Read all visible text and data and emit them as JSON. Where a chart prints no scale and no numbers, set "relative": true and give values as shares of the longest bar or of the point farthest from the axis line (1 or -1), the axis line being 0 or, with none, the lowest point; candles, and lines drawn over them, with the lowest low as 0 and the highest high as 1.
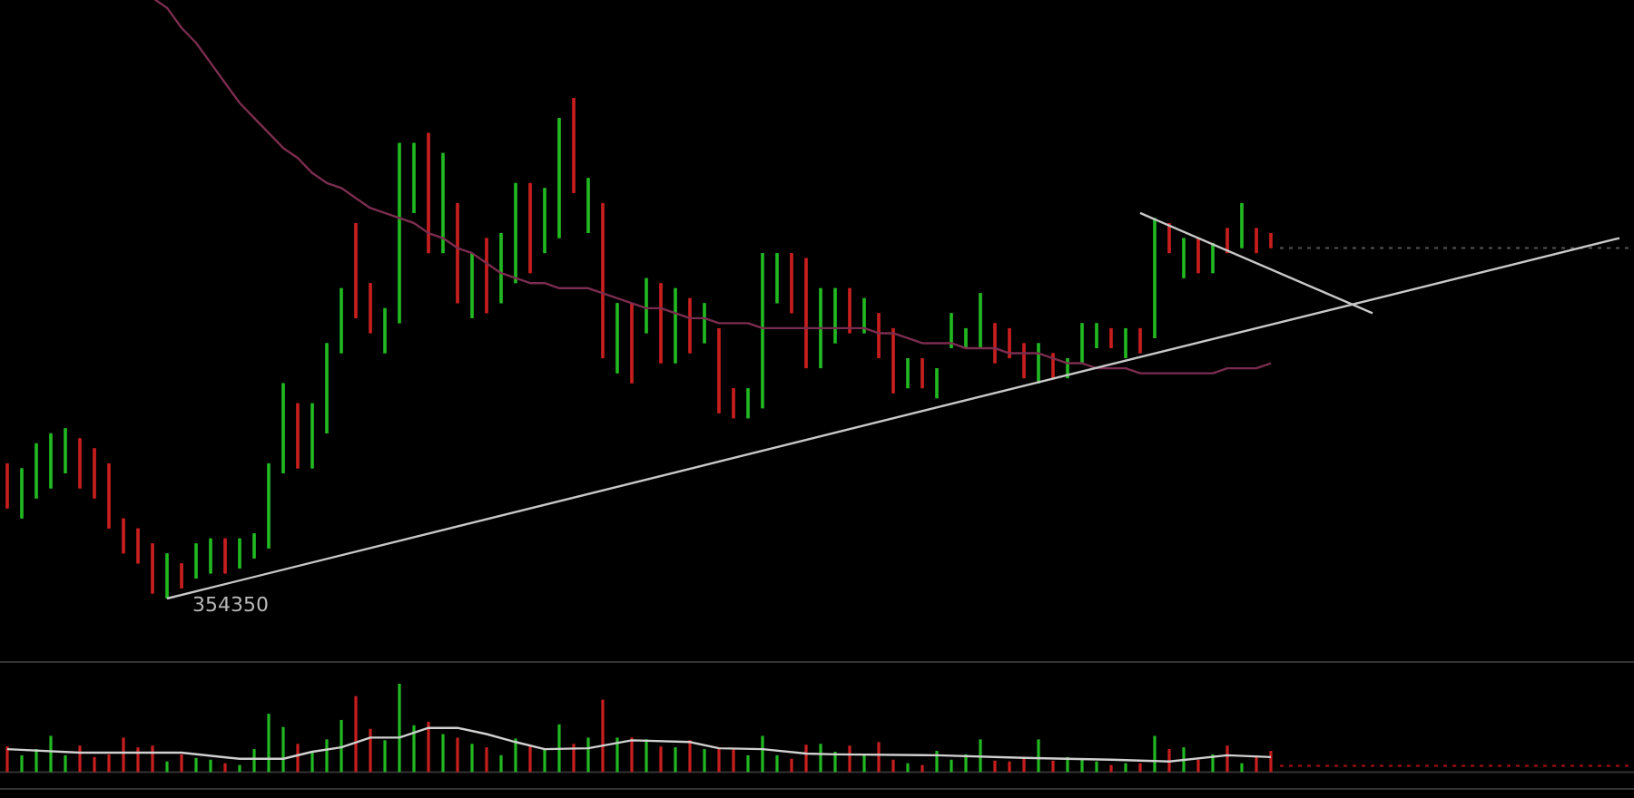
{
  "chart_data": [
    {
      "type": "candlestick",
      "relative": true,
      "categories": [
        null,
        null,
        null,
        null,
        null,
        null,
        null,
        null,
        null,
        null,
        null,
        null,
        null,
        null,
        null,
        null,
        null,
        null,
        null,
        null,
        null,
        null,
        null,
        null,
        null,
        null,
        null,
        null,
        null,
        null,
        null,
        null,
        null,
        null,
        null,
        null,
        null,
        null,
        null,
        null,
        null,
        null,
        null,
        null,
        null,
        null,
        null,
        null,
        null,
        null,
        null,
        null,
        null,
        null,
        null,
        null,
        null,
        null,
        null,
        null,
        null,
        null,
        null,
        null,
        null,
        null,
        null,
        null,
        null,
        null,
        null,
        null,
        null,
        null,
        null,
        null,
        null,
        null,
        null,
        null,
        null,
        null,
        null,
        null,
        null,
        null,
        null,
        null,
        null,
        null,
        null,
        null,
        null,
        null,
        null,
        null,
        null,
        null,
        null,
        null,
        null,
        null,
        null,
        null,
        null,
        null,
        null,
        null,
        null,
        null,
        null,
        null
      ],
      "ohlc": [
        [
          0.27,
          0.27,
          0.18,
          0.18
        ],
        [
          0.16,
          0.26,
          0.16,
          0.26
        ],
        [
          0.2,
          0.31,
          0.2,
          0.31
        ],
        [
          0.22,
          0.33,
          0.22,
          0.33
        ],
        [
          0.25,
          0.34,
          0.25,
          0.34
        ],
        [
          0.32,
          0.32,
          0.22,
          0.22
        ],
        [
          0.3,
          0.3,
          0.2,
          0.2
        ],
        [
          0.27,
          0.27,
          0.14,
          0.14
        ],
        [
          0.16,
          0.16,
          0.09,
          0.09
        ],
        [
          0.14,
          0.14,
          0.07,
          0.07
        ],
        [
          0.11,
          0.11,
          0.01,
          0.01
        ],
        [
          0,
          0.09,
          0,
          0.09
        ],
        [
          0.07,
          0.07,
          0.02,
          0.02
        ],
        [
          0.04,
          0.11,
          0.04,
          0.11
        ],
        [
          0.05,
          0.12,
          0.05,
          0.12
        ],
        [
          0.12,
          0.12,
          0.05,
          0.05
        ],
        [
          0.06,
          0.12,
          0.06,
          0.12
        ],
        [
          0.08,
          0.13,
          0.08,
          0.13
        ],
        [
          0.1,
          0.27,
          0.1,
          0.27
        ],
        [
          0.25,
          0.43,
          0.25,
          0.43
        ],
        [
          0.39,
          0.39,
          0.26,
          0.26
        ],
        [
          0.26,
          0.39,
          0.26,
          0.39
        ],
        [
          0.33,
          0.51,
          0.33,
          0.51
        ],
        [
          0.49,
          0.62,
          0.49,
          0.62
        ],
        [
          0.75,
          0.75,
          0.56,
          0.56
        ],
        [
          0.63,
          0.63,
          0.53,
          0.53
        ],
        [
          0.49,
          0.58,
          0.49,
          0.58
        ],
        [
          0.55,
          0.91,
          0.55,
          0.91
        ],
        [
          0.77,
          0.91,
          0.77,
          0.91
        ],
        [
          0.93,
          0.93,
          0.69,
          0.69
        ],
        [
          0.69,
          0.89,
          0.69,
          0.89
        ],
        [
          0.79,
          0.79,
          0.59,
          0.59
        ],
        [
          0.56,
          0.69,
          0.56,
          0.69
        ],
        [
          0.72,
          0.72,
          0.57,
          0.57
        ],
        [
          0.59,
          0.73,
          0.59,
          0.73
        ],
        [
          0.63,
          0.83,
          0.63,
          0.83
        ],
        [
          0.83,
          0.83,
          0.65,
          0.65
        ],
        [
          0.69,
          0.82,
          0.69,
          0.82
        ],
        [
          0.72,
          0.96,
          0.72,
          0.96
        ],
        [
          1,
          1,
          0.81,
          0.81
        ],
        [
          0.73,
          0.84,
          0.73,
          0.84
        ],
        [
          0.79,
          0.79,
          0.48,
          0.48
        ],
        [
          0.45,
          0.59,
          0.45,
          0.59
        ],
        [
          0.59,
          0.59,
          0.43,
          0.43
        ],
        [
          0.53,
          0.64,
          0.53,
          0.64
        ],
        [
          0.63,
          0.63,
          0.47,
          0.47
        ],
        [
          0.47,
          0.62,
          0.47,
          0.62
        ],
        [
          0.6,
          0.6,
          0.49,
          0.49
        ],
        [
          0.51,
          0.59,
          0.51,
          0.59
        ],
        [
          0.54,
          0.54,
          0.37,
          0.37
        ],
        [
          0.42,
          0.42,
          0.36,
          0.36
        ],
        [
          0.36,
          0.42,
          0.36,
          0.42
        ],
        [
          0.38,
          0.69,
          0.38,
          0.69
        ],
        [
          0.59,
          0.69,
          0.59,
          0.69
        ],
        [
          0.69,
          0.69,
          0.57,
          0.57
        ],
        [
          0.68,
          0.68,
          0.46,
          0.46
        ],
        [
          0.46,
          0.62,
          0.46,
          0.62
        ],
        [
          0.51,
          0.62,
          0.51,
          0.62
        ],
        [
          0.62,
          0.62,
          0.53,
          0.53
        ],
        [
          0.53,
          0.6,
          0.53,
          0.6
        ],
        [
          0.57,
          0.57,
          0.48,
          0.48
        ],
        [
          0.54,
          0.54,
          0.41,
          0.41
        ],
        [
          0.42,
          0.48,
          0.42,
          0.48
        ],
        [
          0.48,
          0.48,
          0.42,
          0.42
        ],
        [
          0.4,
          0.46,
          0.4,
          0.46
        ],
        [
          0.5,
          0.57,
          0.5,
          0.57
        ],
        [
          0.5,
          0.54,
          0.5,
          0.54
        ],
        [
          0.5,
          0.61,
          0.5,
          0.61
        ],
        [
          0.55,
          0.55,
          0.47,
          0.47
        ],
        [
          0.54,
          0.54,
          0.48,
          0.48
        ],
        [
          0.51,
          0.51,
          0.44,
          0.44
        ],
        [
          0.43,
          0.51,
          0.43,
          0.51
        ],
        [
          0.49,
          0.49,
          0.44,
          0.44
        ],
        [
          0.44,
          0.48,
          0.44,
          0.48
        ],
        [
          0.47,
          0.55,
          0.47,
          0.55
        ],
        [
          0.5,
          0.55,
          0.5,
          0.55
        ],
        [
          0.54,
          0.54,
          0.5,
          0.5
        ],
        [
          0.48,
          0.54,
          0.48,
          0.54
        ],
        [
          0.54,
          0.54,
          0.49,
          0.49
        ],
        [
          0.52,
          0.76,
          0.52,
          0.76
        ],
        [
          0.75,
          0.75,
          0.69,
          0.69
        ],
        [
          0.64,
          0.72,
          0.64,
          0.72
        ],
        [
          0.72,
          0.72,
          0.65,
          0.65
        ],
        [
          0.65,
          0.71,
          0.65,
          0.71
        ],
        [
          0.74,
          0.74,
          0.69,
          0.69
        ],
        [
          0.7,
          0.79,
          0.7,
          0.79
        ],
        [
          0.74,
          0.74,
          0.69,
          0.69
        ],
        [
          0.73,
          0.73,
          0.7,
          0.7
        ],
        null,
        null,
        null,
        null,
        null,
        null,
        null,
        null,
        null,
        null,
        null,
        null,
        null,
        null,
        null,
        null,
        null,
        null,
        null,
        null,
        null,
        null,
        null,
        null
      ],
      "colors": [
        "#c81e1e",
        "#22b822",
        "#22b822",
        "#22b822",
        "#22b822",
        "#c81e1e",
        "#c81e1e",
        "#c81e1e",
        "#c81e1e",
        "#c81e1e",
        "#c81e1e",
        "#22b822",
        "#c81e1e",
        "#22b822",
        "#22b822",
        "#c81e1e",
        "#22b822",
        "#22b822",
        "#22b822",
        "#22b822",
        "#c81e1e",
        "#22b822",
        "#22b822",
        "#22b822",
        "#c81e1e",
        "#c81e1e",
        "#22b822",
        "#22b822",
        "#22b822",
        "#c81e1e",
        "#22b822",
        "#c81e1e",
        "#22b822",
        "#c81e1e",
        "#22b822",
        "#22b822",
        "#c81e1e",
        "#22b822",
        "#22b822",
        "#c81e1e",
        "#22b822",
        "#c81e1e",
        "#22b822",
        "#c81e1e",
        "#22b822",
        "#c81e1e",
        "#22b822",
        "#c81e1e",
        "#22b822",
        "#c81e1e",
        "#c81e1e",
        "#22b822",
        "#22b822",
        "#22b822",
        "#c81e1e",
        "#c81e1e",
        "#22b822",
        "#22b822",
        "#c81e1e",
        "#22b822",
        "#c81e1e",
        "#c81e1e",
        "#22b822",
        "#c81e1e",
        "#22b822",
        "#22b822",
        "#22b822",
        "#22b822",
        "#c81e1e",
        "#c81e1e",
        "#c81e1e",
        "#22b822",
        "#c81e1e",
        "#22b822",
        "#22b822",
        "#22b822",
        "#c81e1e",
        "#22b822",
        "#c81e1e",
        "#22b822",
        "#c81e1e",
        "#22b822",
        "#c81e1e",
        "#22b822",
        "#c81e1e",
        "#22b822",
        "#c81e1e",
        "#c81e1e",
        null,
        null,
        null,
        null,
        null,
        null,
        null,
        null,
        null,
        null,
        null,
        null,
        null,
        null,
        null,
        null,
        null,
        null,
        null,
        null,
        null,
        null,
        null,
        null
      ],
      "series": [
        {
          "type": "line",
          "color": "#7b2d4f",
          "values": [
            null,
            null,
            null,
            null,
            null,
            null,
            null,
            null,
            null,
            null,
            1.2,
            1.18,
            1.14,
            1.11,
            1.07,
            1.03,
            0.99,
            0.96,
            0.93,
            0.9,
            0.88,
            0.85,
            0.83,
            0.82,
            0.8,
            0.78,
            0.77,
            0.76,
            0.75,
            0.73,
            0.72,
            0.7,
            0.69,
            0.67,
            0.65,
            0.64,
            0.63,
            0.63,
            0.62,
            0.62,
            0.62,
            0.61,
            0.6,
            0.59,
            0.58,
            0.58,
            0.57,
            0.56,
            0.56,
            0.55,
            0.55,
            0.55,
            0.54,
            0.54,
            0.54,
            0.54,
            0.54,
            0.54,
            0.54,
            0.54,
            0.53,
            0.53,
            0.52,
            0.51,
            0.51,
            0.51,
            0.5,
            0.5,
            0.5,
            0.49,
            0.49,
            0.49,
            0.48,
            0.47,
            0.47,
            0.46,
            0.46,
            0.46,
            0.45,
            0.45,
            0.45,
            0.45,
            0.45,
            0.45,
            0.46,
            0.46,
            0.46,
            0.47,
            null,
            null,
            null,
            null,
            null,
            null,
            null,
            null,
            null,
            null,
            null,
            null,
            null,
            null,
            null,
            null,
            null,
            null,
            null,
            null,
            null,
            null,
            null,
            null
          ]
        },
        {
          "type": "line",
          "color": "#c8c8c8",
          "values": [
            null,
            null,
            null,
            null,
            null,
            null,
            null,
            null,
            null,
            null,
            null,
            0,
            null,
            null,
            null,
            null,
            null,
            null,
            null,
            null,
            null,
            null,
            null,
            null,
            null,
            null,
            null,
            null,
            null,
            null,
            null,
            null,
            null,
            null,
            null,
            null,
            null,
            null,
            null,
            null,
            null,
            null,
            null,
            null,
            null,
            null,
            null,
            null,
            null,
            null,
            null,
            null,
            null,
            null,
            null,
            null,
            null,
            null,
            null,
            null,
            null,
            null,
            null,
            null,
            null,
            null,
            null,
            null,
            null,
            null,
            null,
            null,
            null,
            null,
            null,
            null,
            null,
            null,
            null,
            null,
            null,
            null,
            null,
            null,
            null,
            null,
            null,
            null,
            null,
            null,
            null,
            null,
            null,
            null,
            null,
            null,
            null,
            null,
            null,
            null,
            null,
            null,
            null,
            null,
            null,
            null,
            null,
            null,
            null,
            null,
            null,
            0.72
          ]
        },
        {
          "type": "line",
          "color": "#c8c8c8",
          "values": [
            null,
            null,
            null,
            null,
            null,
            null,
            null,
            null,
            null,
            null,
            null,
            null,
            null,
            null,
            null,
            null,
            null,
            null,
            null,
            null,
            null,
            null,
            null,
            null,
            null,
            null,
            null,
            null,
            null,
            null,
            null,
            null,
            null,
            null,
            null,
            null,
            null,
            null,
            null,
            null,
            null,
            null,
            null,
            null,
            null,
            null,
            null,
            null,
            null,
            null,
            null,
            null,
            null,
            null,
            null,
            null,
            null,
            null,
            null,
            null,
            null,
            null,
            null,
            null,
            null,
            null,
            null,
            null,
            null,
            null,
            null,
            null,
            null,
            null,
            null,
            null,
            null,
            null,
            0.77,
            null,
            null,
            null,
            null,
            null,
            null,
            null,
            null,
            null,
            null,
            null,
            null,
            null,
            null,
            null,
            0.57,
            null,
            null,
            null,
            null,
            null,
            null,
            null,
            null,
            null,
            null,
            null,
            null,
            null,
            null,
            null,
            null,
            null
          ]
        }
      ],
      "ref_lines": [
        {
          "axis": "y",
          "value": 0.7,
          "color": "#555555",
          "line_style": "dotted"
        }
      ],
      "annotations": [
        "354350"
      ]
    },
    {
      "type": "bar",
      "relative": true,
      "categories": [
        null,
        null,
        null,
        null,
        null,
        null,
        null,
        null,
        null,
        null,
        null,
        null,
        null,
        null,
        null,
        null,
        null,
        null,
        null,
        null,
        null,
        null,
        null,
        null,
        null,
        null,
        null,
        null,
        null,
        null,
        null,
        null,
        null,
        null,
        null,
        null,
        null,
        null,
        null,
        null,
        null,
        null,
        null,
        null,
        null,
        null,
        null,
        null,
        null,
        null,
        null,
        null,
        null,
        null,
        null,
        null,
        null,
        null,
        null,
        null,
        null,
        null,
        null,
        null,
        null,
        null,
        null,
        null,
        null,
        null,
        null,
        null,
        null,
        null,
        null,
        null,
        null,
        null,
        null,
        null,
        null,
        null,
        null,
        null,
        null,
        null,
        null,
        null,
        null,
        null,
        null,
        null,
        null,
        null,
        null,
        null,
        null,
        null,
        null,
        null,
        null,
        null,
        null,
        null,
        null,
        null,
        null,
        null,
        null,
        null,
        null,
        null
      ],
      "values": [
        0.29,
        0.19,
        0.26,
        0.41,
        0.19,
        0.3,
        0.17,
        0.2,
        0.39,
        0.28,
        0.3,
        0.12,
        0.2,
        0.16,
        0.14,
        0.1,
        0.08,
        0.26,
        0.66,
        0.51,
        0.32,
        0.22,
        0.37,
        0.59,
        0.86,
        0.49,
        0.36,
        1,
        0.53,
        0.57,
        0.43,
        0.39,
        0.32,
        0.28,
        0.19,
        0.38,
        0.31,
        0.26,
        0.54,
        0.32,
        0.39,
        0.82,
        0.39,
        0.39,
        0.37,
        0.29,
        0.28,
        0.36,
        0.26,
        0.26,
        0.26,
        0.19,
        0.41,
        0.19,
        0.15,
        0.31,
        0.32,
        0.23,
        0.3,
        0.19,
        0.34,
        0.14,
        0.1,
        0.08,
        0.24,
        0.14,
        0.2,
        0.37,
        0.13,
        0.12,
        0.17,
        0.37,
        0.13,
        0.17,
        0.14,
        0.12,
        0.08,
        0.1,
        0.1,
        0.41,
        0.26,
        0.28,
        0.14,
        0.2,
        0.3,
        0.1,
        0.19,
        0.24,
        null,
        null,
        null,
        null,
        null,
        null,
        null,
        null,
        null,
        null,
        null,
        null,
        null,
        null,
        null,
        null,
        null,
        null,
        null,
        null,
        null,
        null,
        null,
        null
      ],
      "colors": [
        "#c81e1e",
        "#22b822",
        "#22b822",
        "#22b822",
        "#22b822",
        "#c81e1e",
        "#c81e1e",
        "#c81e1e",
        "#c81e1e",
        "#c81e1e",
        "#c81e1e",
        "#22b822",
        "#c81e1e",
        "#22b822",
        "#22b822",
        "#c81e1e",
        "#22b822",
        "#22b822",
        "#22b822",
        "#22b822",
        "#c81e1e",
        "#22b822",
        "#22b822",
        "#22b822",
        "#c81e1e",
        "#c81e1e",
        "#22b822",
        "#22b822",
        "#22b822",
        "#c81e1e",
        "#22b822",
        "#c81e1e",
        "#22b822",
        "#c81e1e",
        "#22b822",
        "#22b822",
        "#c81e1e",
        "#22b822",
        "#22b822",
        "#c81e1e",
        "#22b822",
        "#c81e1e",
        "#22b822",
        "#c81e1e",
        "#22b822",
        "#c81e1e",
        "#22b822",
        "#c81e1e",
        "#22b822",
        "#c81e1e",
        "#c81e1e",
        "#22b822",
        "#22b822",
        "#22b822",
        "#c81e1e",
        "#c81e1e",
        "#22b822",
        "#22b822",
        "#c81e1e",
        "#22b822",
        "#c81e1e",
        "#c81e1e",
        "#22b822",
        "#c81e1e",
        "#22b822",
        "#22b822",
        "#22b822",
        "#22b822",
        "#c81e1e",
        "#c81e1e",
        "#c81e1e",
        "#22b822",
        "#c81e1e",
        "#22b822",
        "#22b822",
        "#22b822",
        "#c81e1e",
        "#22b822",
        "#c81e1e",
        "#22b822",
        "#c81e1e",
        "#22b822",
        "#c81e1e",
        "#22b822",
        "#c81e1e",
        "#22b822",
        "#c81e1e",
        "#c81e1e",
        null,
        null,
        null,
        null,
        null,
        null,
        null,
        null,
        null,
        null,
        null,
        null,
        null,
        null,
        null,
        null,
        null,
        null,
        null,
        null,
        null,
        null,
        null,
        null
      ],
      "series": [
        {
          "type": "line",
          "color": "#d0d0d0",
          "values": [
            0.26,
            null,
            null,
            null,
            null,
            0.22,
            null,
            null,
            null,
            null,
            null,
            null,
            0.22,
            null,
            null,
            null,
            0.15,
            null,
            null,
            0.15,
            null,
            0.23,
            null,
            0.28,
            null,
            0.39,
            null,
            0.39,
            null,
            0.5,
            null,
            0.5,
            null,
            0.43,
            null,
            0.34,
            null,
            0.26,
            null,
            null,
            0.27,
            null,
            null,
            0.36,
            null,
            null,
            null,
            0.34,
            null,
            0.27,
            null,
            null,
            0.26,
            null,
            null,
            0.21,
            null,
            0.2,
            null,
            null,
            null,
            null,
            null,
            null,
            0.19,
            null,
            null,
            null,
            null,
            null,
            0.16,
            null,
            null,
            null,
            null,
            null,
            0.14,
            null,
            null,
            null,
            0.12,
            null,
            null,
            null,
            0.19,
            null,
            null,
            0.17,
            null,
            null,
            null,
            null,
            null,
            null,
            null,
            null,
            null,
            null,
            null,
            null,
            null,
            null,
            null,
            null,
            null,
            null,
            null,
            null,
            null,
            null,
            null,
            null
          ]
        }
      ],
      "ref_lines": [
        {
          "axis": "y",
          "value": 0.07,
          "color": "#b01010",
          "line_style": "dotted"
        }
      ]
    }
  ]
}
